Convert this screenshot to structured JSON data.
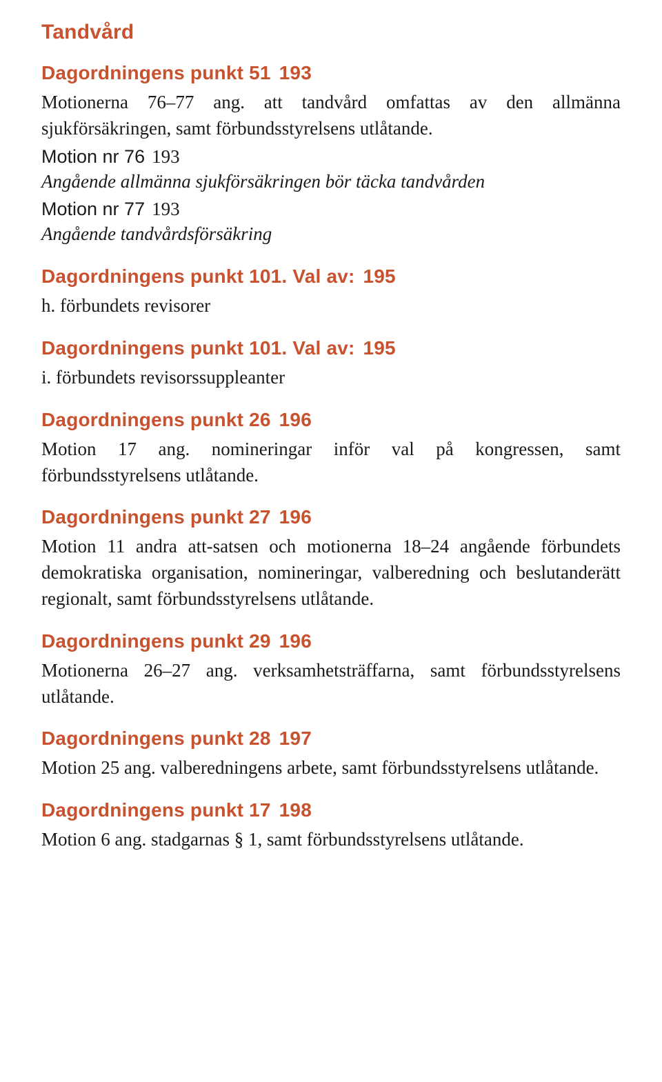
{
  "colors": {
    "accent": "#c8512e",
    "body_text": "#1a1a1a",
    "background": "#ffffff"
  },
  "typography": {
    "heading_font": "Trebuchet MS",
    "body_font": "Georgia",
    "section_title_fontsize_pt": 22,
    "sub_heading_fontsize_pt": 21,
    "body_fontsize_pt": 20
  },
  "section_title": "Tandvård",
  "p51": {
    "heading_label": "Dagordningens punkt 51",
    "heading_page": "193",
    "body": "Motionerna 76–77 ang. att tandvård omfattas av den allmänna sjukförsäkringen, samt förbundsstyrelsens utlåtande.",
    "m76_label": "Motion nr 76",
    "m76_page": "193",
    "m76_italic": "Angående allmänna sjukförsäkringen bör täcka tandvården",
    "m77_label": "Motion nr 77",
    "m77_page": "193",
    "m77_italic": "Angående tandvårdsförsäkring"
  },
  "p101a": {
    "heading_label": "Dagordningens punkt 101. Val av:",
    "heading_page": "195",
    "body": "h. förbundets revisorer"
  },
  "p101b": {
    "heading_label": "Dagordningens punkt 101. Val av:",
    "heading_page": "195",
    "body": "i. förbundets revisorssuppleanter"
  },
  "p26": {
    "heading_label": "Dagordningens punkt 26",
    "heading_page": "196",
    "body": "Motion 17 ang. nomineringar inför val på kongressen, samt förbundsstyrelsens utlåtande."
  },
  "p27": {
    "heading_label": "Dagordningens punkt 27",
    "heading_page": "196",
    "body": "Motion 11 andra att-satsen och motionerna 18–24 angående förbundets demokratiska organisation, nomineringar, valberedning och beslutanderätt regionalt, samt förbundsstyrelsens utlåtande."
  },
  "p29": {
    "heading_label": "Dagordningens punkt 29",
    "heading_page": "196",
    "body": "Motionerna 26–27 ang. verksamhetsträffarna, samt förbundsstyrelsens utlåtande."
  },
  "p28": {
    "heading_label": "Dagordningens punkt 28",
    "heading_page": "197",
    "body": "Motion 25 ang. valberedningens arbete, samt förbundsstyrelsens utlåtande."
  },
  "p17": {
    "heading_label": "Dagordningens punkt 17",
    "heading_page": "198",
    "body": "Motion 6 ang. stadgarnas § 1, samt förbundsstyrelsens utlåtande."
  }
}
